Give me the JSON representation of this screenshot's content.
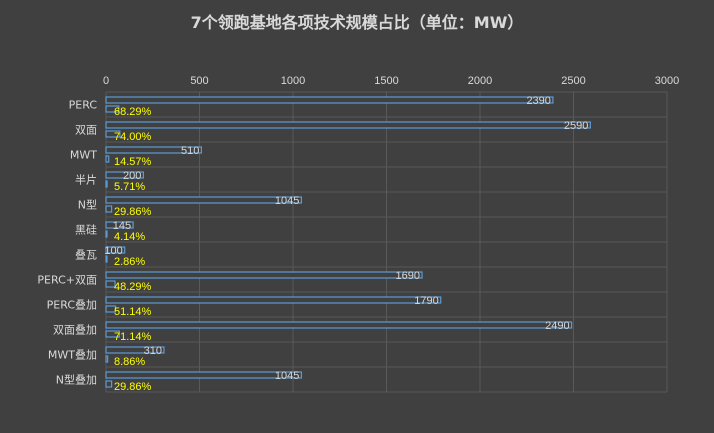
{
  "chart_data": {
    "type": "bar",
    "orientation": "horizontal",
    "title": "7个领跑基地各项技术规模占比（单位：MW）",
    "xlim": [
      0,
      3000
    ],
    "xticks": [
      0,
      500,
      1000,
      1500,
      2000,
      2500,
      3000
    ],
    "categories": [
      "PERC",
      "双面",
      "MWT",
      "半片",
      "N型",
      "黑硅",
      "叠瓦",
      "PERC+双面",
      "PERC叠加",
      "双面叠加",
      "MWT叠加",
      "N型叠加"
    ],
    "series": [
      {
        "values": [
          2390,
          2590,
          510,
          200,
          1045,
          145,
          100,
          1690,
          1790,
          2490,
          310,
          1045
        ],
        "labels": [
          "2390",
          "2590",
          "510",
          "200",
          "1045",
          "145",
          "100",
          "1690",
          "1790",
          "2490",
          "310",
          "1045"
        ]
      },
      {
        "values": [
          68.29,
          74.0,
          14.57,
          5.71,
          29.86,
          4.14,
          2.86,
          48.29,
          51.14,
          71.14,
          8.86,
          29.86
        ],
        "labels": [
          "68.29%",
          "74.00%",
          "14.57%",
          "5.71%",
          "29.86%",
          "4.14%",
          "2.86%",
          "48.29%",
          "51.14%",
          "71.14%",
          "8.86%",
          "29.86%"
        ]
      }
    ],
    "grid": true,
    "legend": "none",
    "colors": {
      "background": "#404040",
      "bar_fill": "#404040",
      "bar_stroke": "#5b9bd5",
      "text": "#d9d9d9",
      "percent_text": "#ffff00",
      "grid": "#595959"
    }
  }
}
